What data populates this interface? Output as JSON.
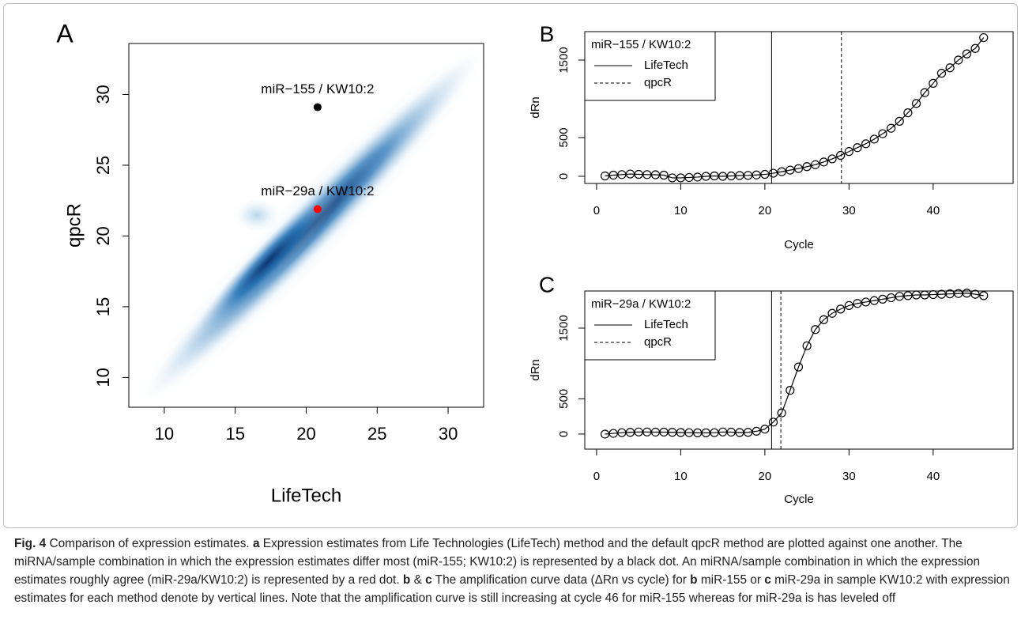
{
  "chart_data": [
    {
      "type": "scatter",
      "label": "A",
      "xlabel": "LifeTech",
      "ylabel": "qpcR",
      "xlim": [
        7.5,
        32.5
      ],
      "ylim": [
        7.9,
        33.6
      ],
      "xticks": [
        10,
        15,
        20,
        25,
        30
      ],
      "yticks": [
        10,
        15,
        20,
        25,
        30
      ],
      "series": [
        {
          "name": "miR−155 / KW10:2",
          "color": "#000000",
          "x": [
            20.8
          ],
          "values": [
            29.1
          ]
        },
        {
          "name": "miR−29a / KW10:2",
          "color": "#ff0000",
          "x": [
            20.8
          ],
          "values": [
            21.9
          ]
        }
      ]
    },
    {
      "type": "line",
      "label": "B",
      "xlabel": "Cycle",
      "ylabel": "dRn",
      "xlim": [
        -1.4,
        49.5
      ],
      "ylim": [
        -92,
        1867
      ],
      "xticks": [
        0,
        10,
        20,
        30,
        40
      ],
      "yticks": [
        0,
        500,
        1500
      ],
      "legend_title": "miR−155 / KW10:2",
      "vlines": [
        {
          "name": "LifeTech",
          "value": 20.8,
          "dashed": false
        },
        {
          "name": "qpcR",
          "value": 29.1,
          "dashed": true
        }
      ],
      "x": [
        1,
        2,
        3,
        4,
        5,
        6,
        7,
        8,
        9,
        10,
        11,
        12,
        13,
        14,
        15,
        16,
        17,
        18,
        19,
        20,
        21,
        22,
        23,
        24,
        25,
        26,
        27,
        28,
        29,
        30,
        31,
        32,
        33,
        34,
        35,
        36,
        37,
        38,
        39,
        40,
        41,
        42,
        43,
        44,
        45,
        46
      ],
      "series": [
        {
          "color": "#000000",
          "values": [
            5,
            15,
            22,
            30,
            25,
            22,
            20,
            15,
            -20,
            -20,
            -15,
            -10,
            0,
            5,
            0,
            5,
            10,
            12,
            18,
            25,
            40,
            60,
            80,
            100,
            125,
            150,
            185,
            225,
            270,
            320,
            370,
            420,
            480,
            550,
            620,
            710,
            820,
            940,
            1080,
            1200,
            1330,
            1400,
            1500,
            1580,
            1650,
            1790
          ]
        }
      ]
    },
    {
      "type": "line",
      "label": "C",
      "xlabel": "Cycle",
      "ylabel": "dRn",
      "xlim": [
        -1.4,
        49.5
      ],
      "ylim": [
        -213,
        2026
      ],
      "xticks": [
        0,
        10,
        20,
        30,
        40
      ],
      "yticks": [
        0,
        500,
        1500
      ],
      "legend_title": "miR−29a / KW10:2",
      "vlines": [
        {
          "name": "LifeTech",
          "value": 20.8,
          "dashed": false
        },
        {
          "name": "qpcR",
          "value": 21.9,
          "dashed": true
        }
      ],
      "x": [
        1,
        2,
        3,
        4,
        5,
        6,
        7,
        8,
        9,
        10,
        11,
        12,
        13,
        14,
        15,
        16,
        17,
        18,
        19,
        20,
        21,
        22,
        23,
        24,
        25,
        26,
        27,
        28,
        29,
        30,
        31,
        32,
        33,
        34,
        35,
        36,
        37,
        38,
        39,
        40,
        41,
        42,
        43,
        44,
        45,
        46
      ],
      "series": [
        {
          "color": "#000000",
          "values": [
            0,
            10,
            20,
            25,
            30,
            30,
            28,
            28,
            25,
            22,
            20,
            18,
            18,
            20,
            30,
            28,
            22,
            25,
            40,
            70,
            170,
            300,
            620,
            950,
            1250,
            1480,
            1620,
            1710,
            1770,
            1820,
            1850,
            1870,
            1890,
            1910,
            1930,
            1950,
            1960,
            1970,
            1970,
            1975,
            1980,
            1985,
            1990,
            1995,
            1980,
            1960
          ]
        }
      ]
    }
  ],
  "caption": [
    {
      "text": "Fig. 4",
      "bold": true
    },
    {
      "text": " Comparison of expression estimates. ",
      "bold": false
    },
    {
      "text": "a",
      "bold": true
    },
    {
      "text": " Expression estimates from Life Technologies (LifeTech) method and the default qpcR method are plotted against one another. The miRNA/sample combination in which the expression estimates differ most (miR-155; KW10:2) is represented by a black dot. An miRNA/sample combination in which the expression estimates roughly agree (miR-29a/KW10:2) is represented by a red dot. ",
      "bold": false
    },
    {
      "text": "b",
      "bold": true
    },
    {
      "text": " & ",
      "bold": false
    },
    {
      "text": "c",
      "bold": true
    },
    {
      "text": " The amplification curve data (ΔRn vs cycle) for ",
      "bold": false
    },
    {
      "text": "b",
      "bold": true
    },
    {
      "text": " miR-155 or ",
      "bold": false
    },
    {
      "text": "c",
      "bold": true
    },
    {
      "text": " miR-29a in sample KW10:2 with expression estimates for each method denote by vertical lines. Note that the amplification curve is still increasing at cycle 46 for miR-155 whereas for miR-29a is has leveled off",
      "bold": false
    }
  ]
}
